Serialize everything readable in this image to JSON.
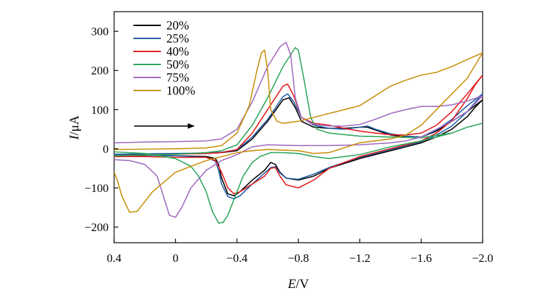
{
  "chart_data": {
    "type": "line",
    "title": "",
    "xlabel": {
      "italic": "E",
      "unit": "/V"
    },
    "ylabel": {
      "italic": "I",
      "unit": "/μA"
    },
    "xlim": [
      0.4,
      -2.0
    ],
    "ylim": [
      -240,
      350
    ],
    "x_ticks": [
      {
        "value": 0.4,
        "label": "0.4"
      },
      {
        "value": 0,
        "label": "0"
      },
      {
        "value": -0.4,
        "label": "−0.4"
      },
      {
        "value": -0.8,
        "label": "−0.8"
      },
      {
        "value": -1.2,
        "label": "−1.2"
      },
      {
        "value": -1.6,
        "label": "−1.6"
      },
      {
        "value": -2.0,
        "label": "−2.0"
      }
    ],
    "y_ticks": [
      {
        "value": 300,
        "label": "300"
      },
      {
        "value": 200,
        "label": "200"
      },
      {
        "value": 100,
        "label": "100"
      },
      {
        "value": 0,
        "label": "0"
      },
      {
        "value": -100,
        "label": "−100"
      },
      {
        "value": -200,
        "label": "−200"
      }
    ],
    "grid": false,
    "legend_position": "top-left",
    "annotation": "scan-direction-arrow",
    "arrow": {
      "x_start": 0.27,
      "x_end": -0.12,
      "y": 58
    },
    "series": [
      {
        "name": "20%",
        "color": "#000000",
        "points": [
          [
            0.4,
            -15
          ],
          [
            0.2,
            -14
          ],
          [
            0,
            -13
          ],
          [
            -0.2,
            -12
          ],
          [
            -0.3,
            -10
          ],
          [
            -0.4,
            -5
          ],
          [
            -0.5,
            25
          ],
          [
            -0.6,
            70
          ],
          [
            -0.7,
            125
          ],
          [
            -0.74,
            130
          ],
          [
            -0.78,
            105
          ],
          [
            -0.82,
            70
          ],
          [
            -0.9,
            55
          ],
          [
            -1.0,
            52
          ],
          [
            -1.1,
            52
          ],
          [
            -1.2,
            55
          ],
          [
            -1.25,
            55
          ],
          [
            -1.3,
            48
          ],
          [
            -1.4,
            35
          ],
          [
            -1.5,
            30
          ],
          [
            -1.6,
            30
          ],
          [
            -1.7,
            45
          ],
          [
            -1.8,
            70
          ],
          [
            -1.9,
            95
          ],
          [
            -2.0,
            125
          ],
          [
            -1.95,
            105
          ],
          [
            -1.9,
            82
          ],
          [
            -1.8,
            50
          ],
          [
            -1.7,
            30
          ],
          [
            -1.6,
            15
          ],
          [
            -1.5,
            5
          ],
          [
            -1.4,
            -5
          ],
          [
            -1.2,
            -25
          ],
          [
            -1.0,
            -50
          ],
          [
            -0.9,
            -70
          ],
          [
            -0.8,
            -80
          ],
          [
            -0.72,
            -75
          ],
          [
            -0.68,
            -60
          ],
          [
            -0.65,
            -40
          ],
          [
            -0.62,
            -35
          ],
          [
            -0.58,
            -55
          ],
          [
            -0.5,
            -80
          ],
          [
            -0.42,
            -110
          ],
          [
            -0.38,
            -120
          ],
          [
            -0.34,
            -115
          ],
          [
            -0.3,
            -75
          ],
          [
            -0.28,
            -40
          ],
          [
            -0.26,
            -25
          ],
          [
            -0.2,
            -20
          ],
          [
            0,
            -18
          ],
          [
            0.2,
            -17
          ],
          [
            0.4,
            -17
          ]
        ]
      },
      {
        "name": "25%",
        "color": "#1f5fa8",
        "points": [
          [
            0.4,
            -14
          ],
          [
            0.2,
            -13
          ],
          [
            0,
            -12
          ],
          [
            -0.2,
            -11
          ],
          [
            -0.3,
            -9
          ],
          [
            -0.4,
            -3
          ],
          [
            -0.5,
            30
          ],
          [
            -0.6,
            75
          ],
          [
            -0.7,
            133
          ],
          [
            -0.73,
            140
          ],
          [
            -0.77,
            120
          ],
          [
            -0.82,
            80
          ],
          [
            -0.9,
            60
          ],
          [
            -1.0,
            52
          ],
          [
            -1.1,
            50
          ],
          [
            -1.2,
            55
          ],
          [
            -1.25,
            58
          ],
          [
            -1.3,
            50
          ],
          [
            -1.4,
            38
          ],
          [
            -1.5,
            32
          ],
          [
            -1.6,
            30
          ],
          [
            -1.7,
            48
          ],
          [
            -1.8,
            75
          ],
          [
            -1.9,
            110
          ],
          [
            -2.0,
            140
          ],
          [
            -1.95,
            118
          ],
          [
            -1.9,
            95
          ],
          [
            -1.8,
            58
          ],
          [
            -1.7,
            35
          ],
          [
            -1.6,
            18
          ],
          [
            -1.5,
            8
          ],
          [
            -1.4,
            -2
          ],
          [
            -1.2,
            -22
          ],
          [
            -1.0,
            -48
          ],
          [
            -0.9,
            -65
          ],
          [
            -0.8,
            -78
          ],
          [
            -0.72,
            -75
          ],
          [
            -0.68,
            -62
          ],
          [
            -0.65,
            -46
          ],
          [
            -0.62,
            -48
          ],
          [
            -0.58,
            -62
          ],
          [
            -0.5,
            -90
          ],
          [
            -0.42,
            -120
          ],
          [
            -0.38,
            -128
          ],
          [
            -0.34,
            -122
          ],
          [
            -0.3,
            -90
          ],
          [
            -0.28,
            -55
          ],
          [
            -0.26,
            -32
          ],
          [
            -0.2,
            -22
          ],
          [
            0,
            -18
          ],
          [
            0.2,
            -17
          ],
          [
            0.4,
            -16
          ]
        ]
      },
      {
        "name": "40%",
        "color": "#e31a1c",
        "points": [
          [
            0.4,
            -18
          ],
          [
            0.2,
            -16
          ],
          [
            0,
            -14
          ],
          [
            -0.2,
            -12
          ],
          [
            -0.3,
            -10
          ],
          [
            -0.4,
            -2
          ],
          [
            -0.5,
            40
          ],
          [
            -0.6,
            100
          ],
          [
            -0.7,
            160
          ],
          [
            -0.73,
            165
          ],
          [
            -0.77,
            135
          ],
          [
            -0.82,
            80
          ],
          [
            -0.9,
            65
          ],
          [
            -1.0,
            60
          ],
          [
            -1.1,
            52
          ],
          [
            -1.2,
            45
          ],
          [
            -1.3,
            40
          ],
          [
            -1.4,
            36
          ],
          [
            -1.5,
            35
          ],
          [
            -1.6,
            40
          ],
          [
            -1.7,
            60
          ],
          [
            -1.8,
            95
          ],
          [
            -1.9,
            140
          ],
          [
            -2.0,
            188
          ],
          [
            -1.95,
            162
          ],
          [
            -1.9,
            128
          ],
          [
            -1.8,
            72
          ],
          [
            -1.7,
            40
          ],
          [
            -1.6,
            20
          ],
          [
            -1.5,
            10
          ],
          [
            -1.4,
            0
          ],
          [
            -1.2,
            -20
          ],
          [
            -1.0,
            -50
          ],
          [
            -0.9,
            -80
          ],
          [
            -0.8,
            -100
          ],
          [
            -0.72,
            -92
          ],
          [
            -0.68,
            -70
          ],
          [
            -0.65,
            -48
          ],
          [
            -0.62,
            -50
          ],
          [
            -0.58,
            -70
          ],
          [
            -0.5,
            -90
          ],
          [
            -0.42,
            -110
          ],
          [
            -0.38,
            -115
          ],
          [
            -0.34,
            -100
          ],
          [
            -0.3,
            -60
          ],
          [
            -0.26,
            -30
          ],
          [
            -0.2,
            -22
          ],
          [
            0,
            -22
          ],
          [
            0.2,
            -20
          ],
          [
            0.4,
            -20
          ]
        ]
      },
      {
        "name": "50%",
        "color": "#2ca65a",
        "points": [
          [
            0.4,
            -18
          ],
          [
            0.2,
            -16
          ],
          [
            0,
            -14
          ],
          [
            -0.2,
            -10
          ],
          [
            -0.3,
            -5
          ],
          [
            -0.4,
            10
          ],
          [
            -0.5,
            60
          ],
          [
            -0.6,
            130
          ],
          [
            -0.7,
            210
          ],
          [
            -0.78,
            258
          ],
          [
            -0.8,
            252
          ],
          [
            -0.84,
            170
          ],
          [
            -0.88,
            80
          ],
          [
            -0.92,
            50
          ],
          [
            -1.0,
            40
          ],
          [
            -1.2,
            32
          ],
          [
            -1.4,
            30
          ],
          [
            -1.6,
            28
          ],
          [
            -1.8,
            40
          ],
          [
            -1.9,
            55
          ],
          [
            -2.0,
            65
          ],
          [
            -1.95,
            60
          ],
          [
            -1.9,
            55
          ],
          [
            -1.8,
            40
          ],
          [
            -1.6,
            20
          ],
          [
            -1.4,
            5
          ],
          [
            -1.2,
            -15
          ],
          [
            -1.0,
            -25
          ],
          [
            -0.9,
            -20
          ],
          [
            -0.8,
            -12
          ],
          [
            -0.7,
            -10
          ],
          [
            -0.62,
            -10
          ],
          [
            -0.55,
            -20
          ],
          [
            -0.5,
            -35
          ],
          [
            -0.44,
            -70
          ],
          [
            -0.38,
            -130
          ],
          [
            -0.34,
            -170
          ],
          [
            -0.31,
            -188
          ],
          [
            -0.28,
            -190
          ],
          [
            -0.24,
            -160
          ],
          [
            -0.2,
            -110
          ],
          [
            -0.15,
            -70
          ],
          [
            -0.1,
            -45
          ],
          [
            0,
            -25
          ],
          [
            0.2,
            -12
          ],
          [
            0.4,
            -8
          ]
        ]
      },
      {
        "name": "75%",
        "color": "#a06bc0",
        "points": [
          [
            0.4,
            15
          ],
          [
            0.2,
            17
          ],
          [
            0,
            18
          ],
          [
            -0.2,
            20
          ],
          [
            -0.3,
            25
          ],
          [
            -0.4,
            50
          ],
          [
            -0.5,
            120
          ],
          [
            -0.6,
            210
          ],
          [
            -0.68,
            260
          ],
          [
            -0.72,
            272
          ],
          [
            -0.75,
            240
          ],
          [
            -0.78,
            130
          ],
          [
            -0.82,
            80
          ],
          [
            -0.9,
            62
          ],
          [
            -1.0,
            58
          ],
          [
            -1.1,
            58
          ],
          [
            -1.2,
            62
          ],
          [
            -1.3,
            75
          ],
          [
            -1.4,
            90
          ],
          [
            -1.5,
            100
          ],
          [
            -1.6,
            108
          ],
          [
            -1.7,
            108
          ],
          [
            -1.8,
            112
          ],
          [
            -1.9,
            122
          ],
          [
            -2.0,
            135
          ],
          [
            -1.95,
            115
          ],
          [
            -1.9,
            95
          ],
          [
            -1.8,
            70
          ],
          [
            -1.7,
            50
          ],
          [
            -1.6,
            30
          ],
          [
            -1.5,
            20
          ],
          [
            -1.4,
            15
          ],
          [
            -1.2,
            10
          ],
          [
            -1.0,
            8
          ],
          [
            -0.8,
            8
          ],
          [
            -0.6,
            10
          ],
          [
            -0.5,
            5
          ],
          [
            -0.4,
            -15
          ],
          [
            -0.3,
            -30
          ],
          [
            -0.2,
            -55
          ],
          [
            -0.1,
            -100
          ],
          [
            -0.04,
            -150
          ],
          [
            0.0,
            -175
          ],
          [
            0.04,
            -170
          ],
          [
            0.08,
            -120
          ],
          [
            0.12,
            -70
          ],
          [
            0.2,
            -40
          ],
          [
            0.3,
            -30
          ],
          [
            0.4,
            -28
          ]
        ]
      },
      {
        "name": "100%",
        "color": "#c7900a",
        "points": [
          [
            0.4,
            -2
          ],
          [
            0.2,
            -1
          ],
          [
            0,
            0
          ],
          [
            -0.2,
            2
          ],
          [
            -0.3,
            8
          ],
          [
            -0.4,
            40
          ],
          [
            -0.48,
            110
          ],
          [
            -0.53,
            200
          ],
          [
            -0.56,
            245
          ],
          [
            -0.58,
            252
          ],
          [
            -0.6,
            200
          ],
          [
            -0.62,
            100
          ],
          [
            -0.66,
            70
          ],
          [
            -0.7,
            65
          ],
          [
            -0.8,
            70
          ],
          [
            -1.0,
            90
          ],
          [
            -1.2,
            110
          ],
          [
            -1.3,
            135
          ],
          [
            -1.4,
            160
          ],
          [
            -1.5,
            175
          ],
          [
            -1.6,
            188
          ],
          [
            -1.7,
            195
          ],
          [
            -1.8,
            210
          ],
          [
            -1.9,
            228
          ],
          [
            -2.0,
            245
          ],
          [
            -1.9,
            180
          ],
          [
            -1.8,
            140
          ],
          [
            -1.7,
            100
          ],
          [
            -1.6,
            60
          ],
          [
            -1.5,
            35
          ],
          [
            -1.4,
            25
          ],
          [
            -1.2,
            15
          ],
          [
            -1.0,
            -10
          ],
          [
            -0.9,
            -12
          ],
          [
            -0.8,
            -5
          ],
          [
            -0.6,
            -2
          ],
          [
            -0.5,
            -5
          ],
          [
            -0.4,
            -10
          ],
          [
            -0.2,
            -30
          ],
          [
            0,
            -60
          ],
          [
            0.15,
            -110
          ],
          [
            0.25,
            -160
          ],
          [
            0.3,
            -162
          ],
          [
            0.35,
            -120
          ],
          [
            0.38,
            -80
          ],
          [
            0.4,
            -60
          ]
        ]
      }
    ]
  }
}
